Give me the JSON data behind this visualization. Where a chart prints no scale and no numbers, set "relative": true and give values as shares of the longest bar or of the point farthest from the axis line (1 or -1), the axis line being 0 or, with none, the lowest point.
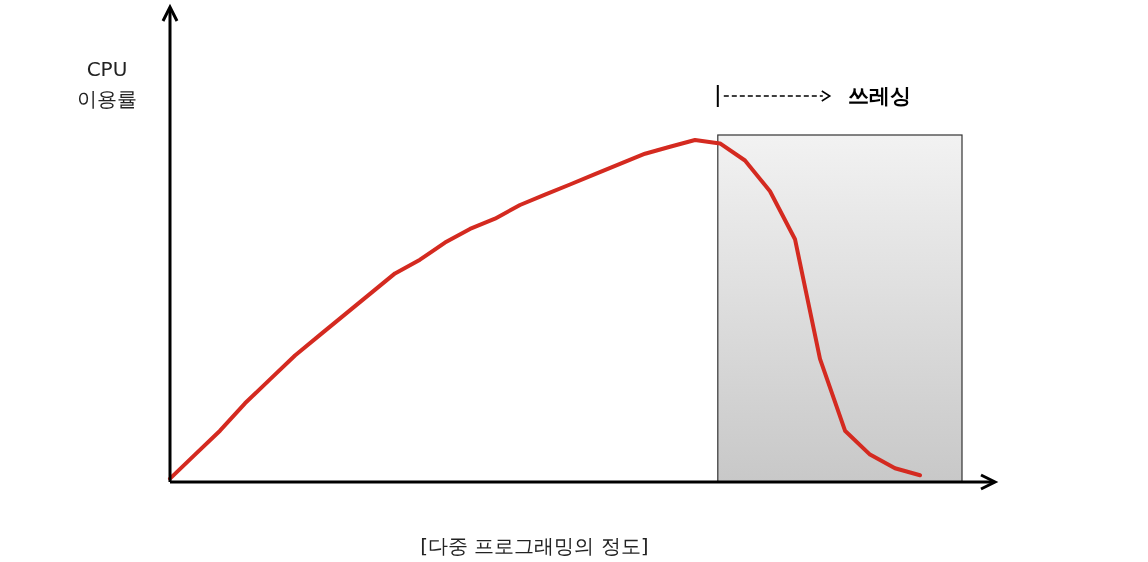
{
  "chart_data": {
    "type": "line",
    "relative": true,
    "xlabel": "[다중 프로그래밍의 정도]",
    "ylabel": "CPU 이용률",
    "color": "#d42a20",
    "categories": [
      null,
      null,
      null,
      null,
      null,
      null,
      null,
      null,
      null,
      null,
      null,
      null,
      null,
      null,
      null,
      null,
      null,
      null,
      null,
      null,
      null,
      null,
      null,
      null,
      null,
      null,
      null,
      null,
      null,
      null,
      null,
      null,
      null,
      null
    ],
    "values": [
      0.01,
      0.08,
      0.15,
      0.23,
      0.3,
      0.37,
      0.43,
      0.49,
      0.55,
      0.61,
      0.65,
      0.7,
      0.74,
      0.77,
      0.81,
      0.84,
      0.87,
      0.9,
      0.93,
      0.96,
      0.98,
      1,
      0.99,
      0.94,
      0.85,
      0.71,
      0.36,
      0.15,
      0.08,
      0.04,
      0.02,
      null,
      null,
      null
    ],
    "annotations": [
      "쓰레싱"
    ]
  }
}
